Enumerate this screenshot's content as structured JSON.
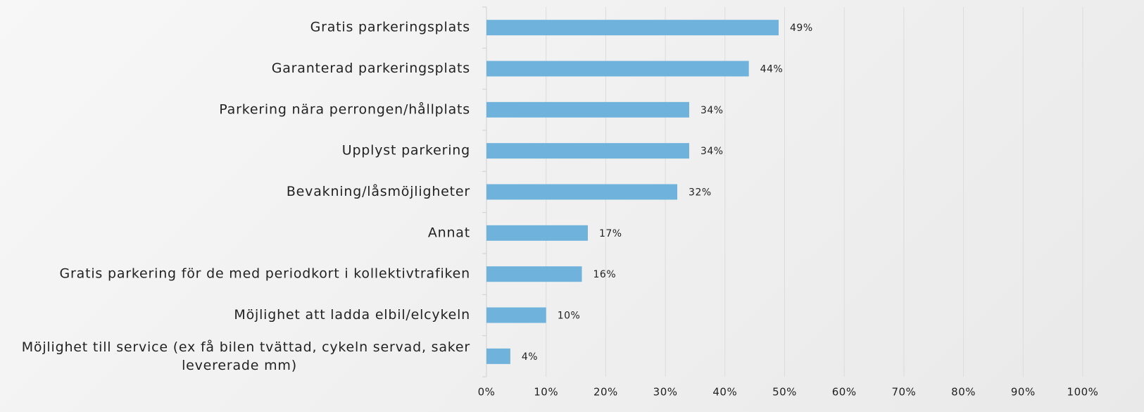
{
  "chart_data": {
    "type": "bar",
    "orientation": "horizontal",
    "categories": [
      "Gratis parkeringsplats",
      "Garanterad parkeringsplats",
      "Parkering nära perrongen/hållplats",
      "Upplyst parkering",
      "Bevakning/låsmöjligheter",
      "Annat",
      "Gratis parkering för de med periodkort i kollektivtrafiken",
      "Möjlighet att ladda elbil/elcykeln",
      "Möjlighet till service (ex få bilen tvättad, cykeln servad, saker levererade mm)"
    ],
    "values": [
      49,
      44,
      34,
      34,
      32,
      17,
      16,
      10,
      4
    ],
    "value_labels": [
      "49%",
      "44%",
      "34%",
      "34%",
      "32%",
      "17%",
      "16%",
      "10%",
      "4%"
    ],
    "color": "#6fb3dc",
    "xlim": [
      0,
      100
    ],
    "xticks": [
      {
        "value": 0,
        "label": "0%"
      },
      {
        "value": 10,
        "label": "10%"
      },
      {
        "value": 20,
        "label": "20%"
      },
      {
        "value": 30,
        "label": "30%"
      },
      {
        "value": 40,
        "label": "40%"
      },
      {
        "value": 50,
        "label": "50%"
      },
      {
        "value": 60,
        "label": "60%"
      },
      {
        "value": 70,
        "label": "70%"
      },
      {
        "value": 80,
        "label": "80%"
      },
      {
        "value": 90,
        "label": "90%"
      },
      {
        "value": 100,
        "label": "100%"
      }
    ],
    "grid": true
  }
}
